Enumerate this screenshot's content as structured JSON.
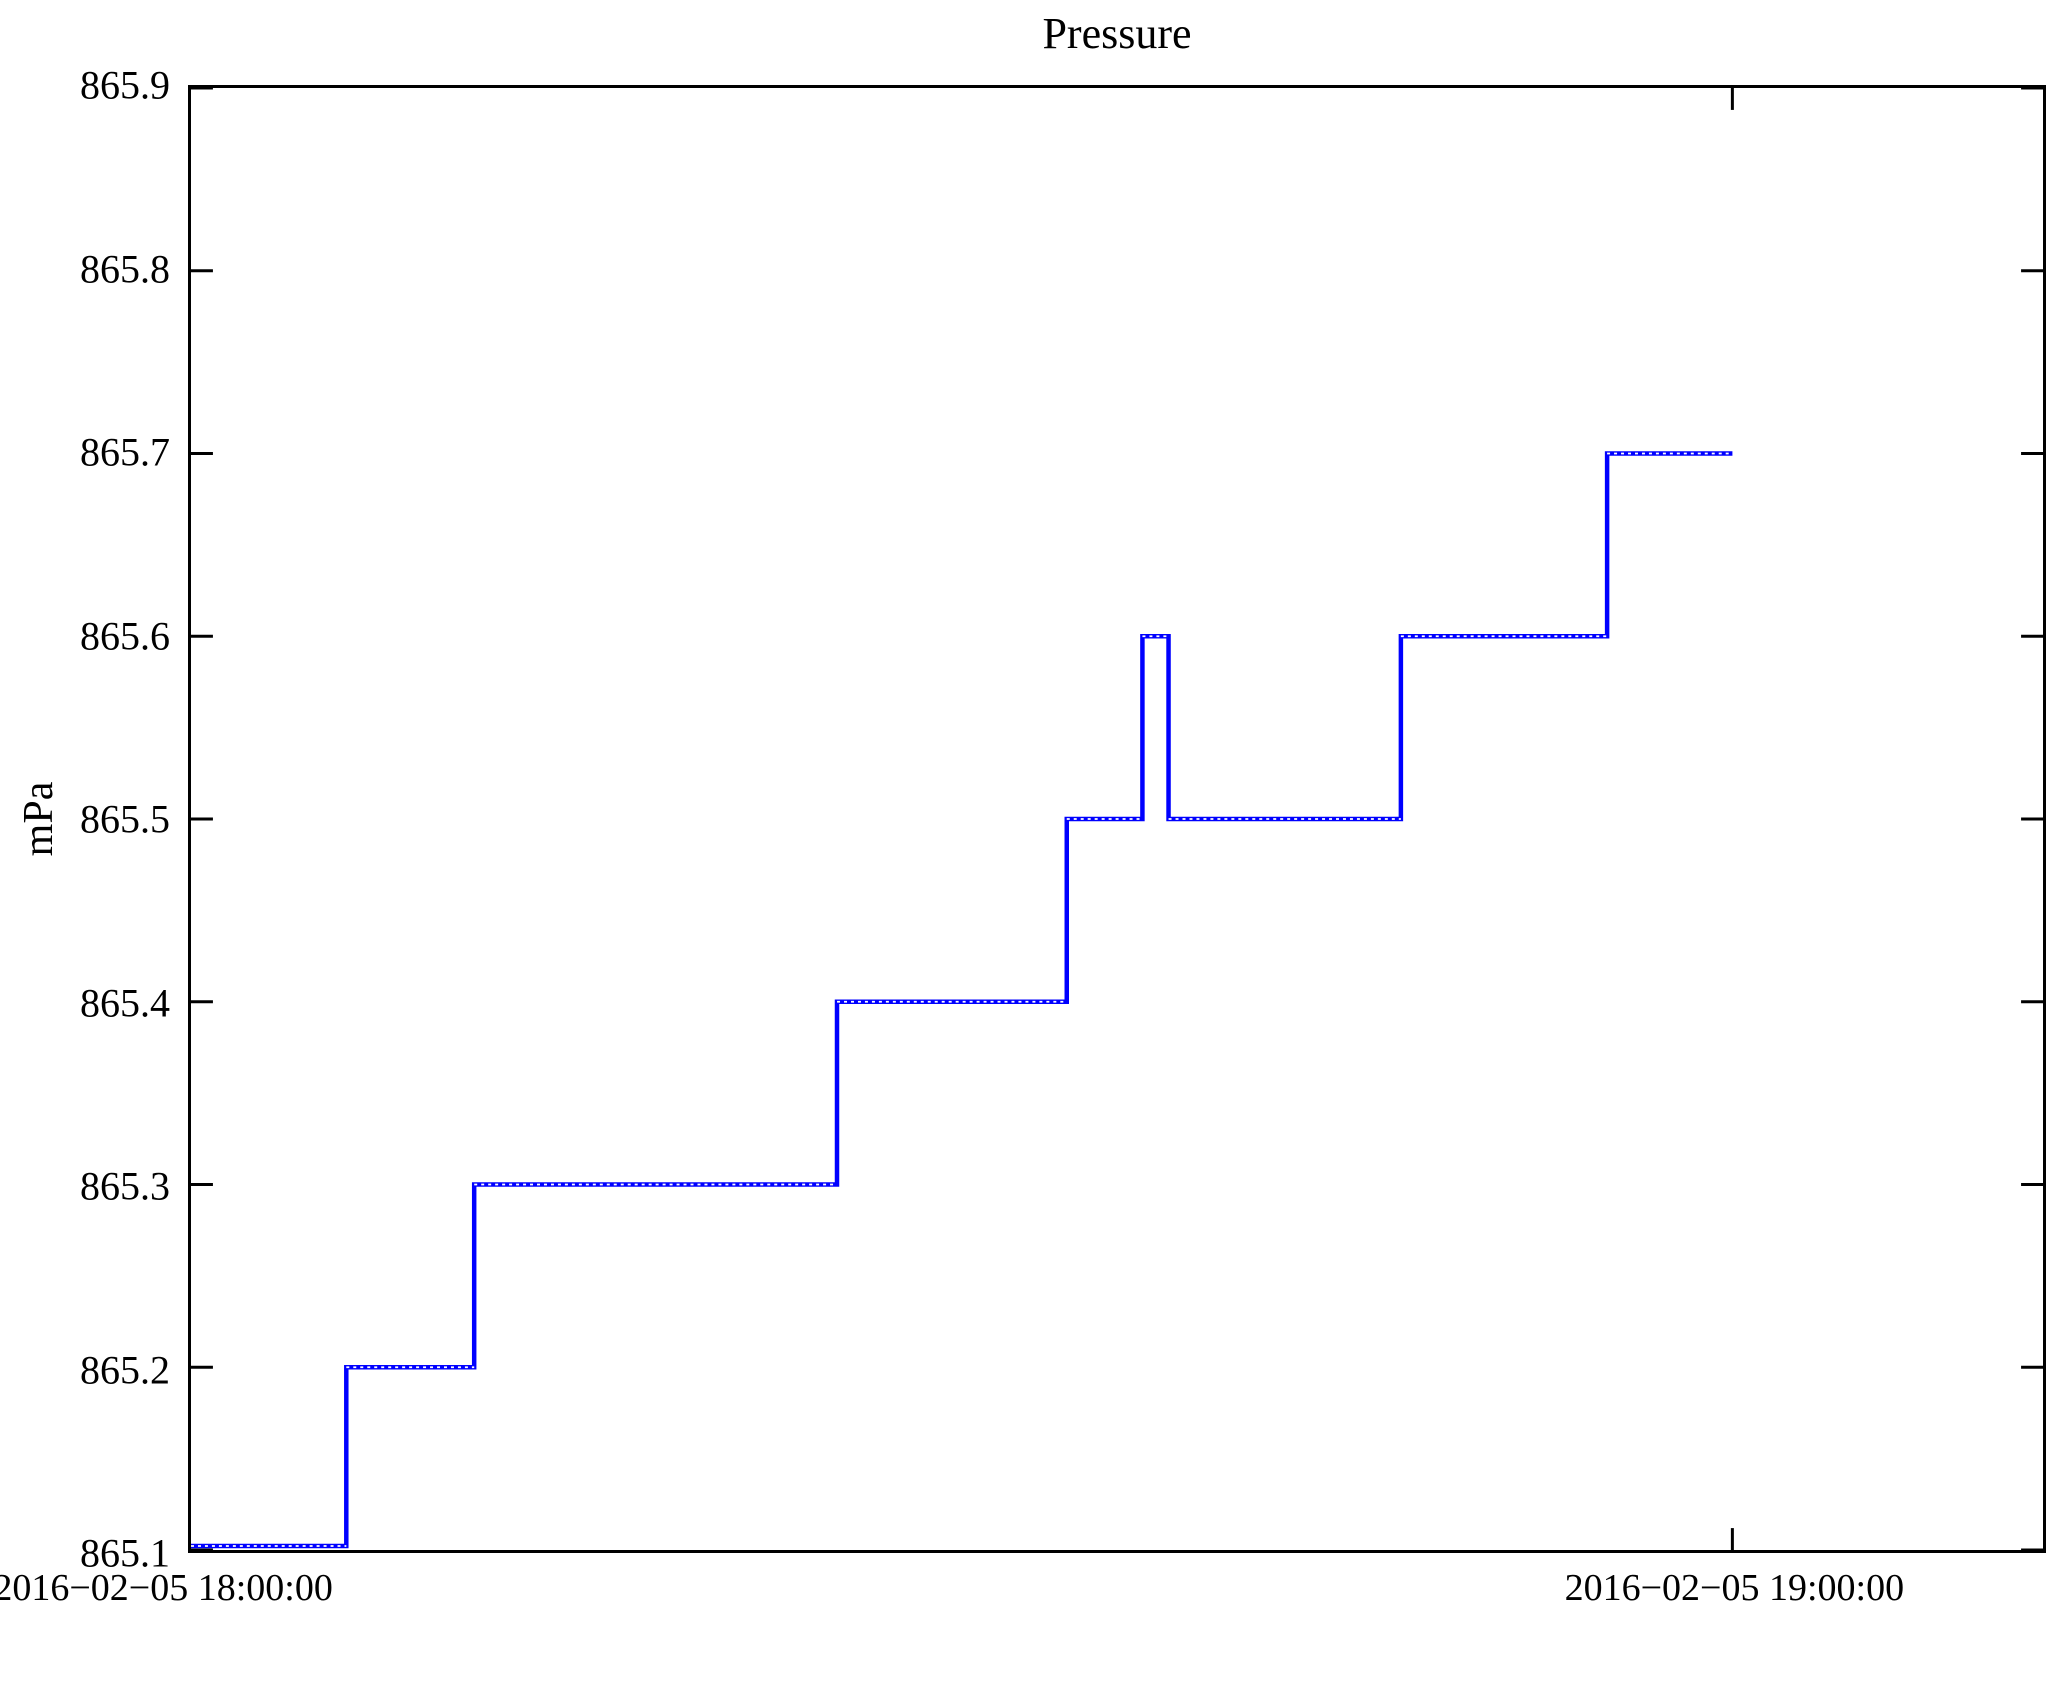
{
  "title": "Pressure",
  "colors": {
    "line": "#0000ff",
    "frame": "#000000",
    "background": "#ffffff",
    "text": "#000000"
  },
  "chart_data": {
    "type": "line",
    "subtype": "step-post",
    "title": "Pressure",
    "xlabel": "",
    "ylabel": "mPa",
    "grid": false,
    "legend": null,
    "x_unit": "minutes after 2016-02-05 18:00:00",
    "x_range_minutes": [
      0.95,
      71.9
    ],
    "ylim": [
      865.1,
      865.9
    ],
    "y_ticks": [
      {
        "value": 865.9,
        "label": "865.9"
      },
      {
        "value": 865.8,
        "label": "865.8"
      },
      {
        "value": 865.7,
        "label": "865.7"
      },
      {
        "value": 865.6,
        "label": "865.6"
      },
      {
        "value": 865.5,
        "label": "865.5"
      },
      {
        "value": 865.4,
        "label": "865.4"
      },
      {
        "value": 865.3,
        "label": "865.3"
      },
      {
        "value": 865.2,
        "label": "865.2"
      },
      {
        "value": 865.1,
        "label": "865.1"
      }
    ],
    "x_ticks": [
      {
        "minutes": 0,
        "label": "2016−02−05 18:00:00"
      },
      {
        "minutes": 60,
        "label": "2016−02−05 19:00:00"
      }
    ],
    "series": [
      {
        "name": "Pressure",
        "unit": "mPa",
        "color": "#0000ff",
        "segments": [
          {
            "start_min": 0.95,
            "end_min": 6.9,
            "value": 865.1
          },
          {
            "start_min": 6.9,
            "end_min": 11.8,
            "value": 865.2
          },
          {
            "start_min": 11.8,
            "end_min": 25.7,
            "value": 865.3
          },
          {
            "start_min": 25.7,
            "end_min": 34.5,
            "value": 865.4
          },
          {
            "start_min": 34.5,
            "end_min": 37.4,
            "value": 865.5
          },
          {
            "start_min": 37.4,
            "end_min": 38.4,
            "value": 865.6
          },
          {
            "start_min": 38.4,
            "end_min": 47.3,
            "value": 865.5
          },
          {
            "start_min": 47.3,
            "end_min": 55.2,
            "value": 865.6
          },
          {
            "start_min": 55.2,
            "end_min": 60.0,
            "value": 865.7
          }
        ]
      }
    ]
  }
}
